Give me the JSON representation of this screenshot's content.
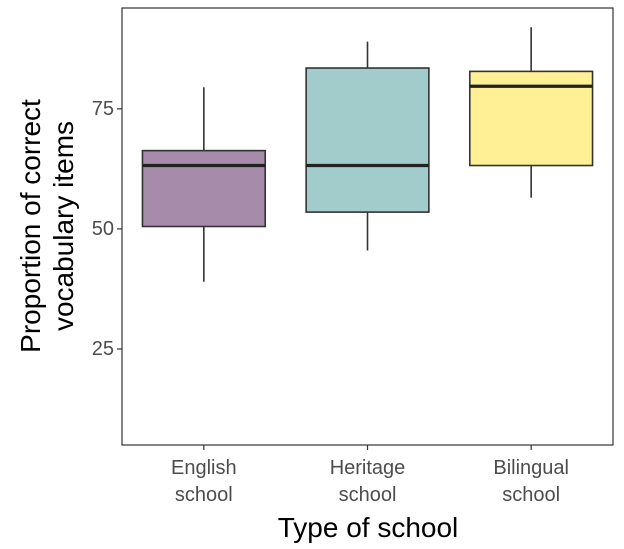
{
  "chart_data": {
    "type": "boxplot",
    "xlabel": "Type of school",
    "ylabel_lines": [
      "Proportion of correct",
      "vocabulary items"
    ],
    "ylim": [
      5,
      96
    ],
    "yticks": [
      25,
      50,
      75
    ],
    "grid": false,
    "categories": [
      {
        "lines": [
          "English",
          "school"
        ],
        "color": "#a68caa"
      },
      {
        "lines": [
          "Heritage",
          "school"
        ],
        "color": "#a2cccb"
      },
      {
        "lines": [
          "Bilingual",
          "school"
        ],
        "color": "#fff096"
      }
    ],
    "boxes": [
      {
        "min": 39,
        "q1": 50.5,
        "median": 63.2,
        "q3": 66.3,
        "max": 79.5
      },
      {
        "min": 45.5,
        "q1": 53.5,
        "median": 63.2,
        "q3": 83.5,
        "max": 89
      },
      {
        "min": 56.5,
        "q1": 63.2,
        "median": 79.7,
        "q3": 82.8,
        "max": 92
      }
    ]
  }
}
